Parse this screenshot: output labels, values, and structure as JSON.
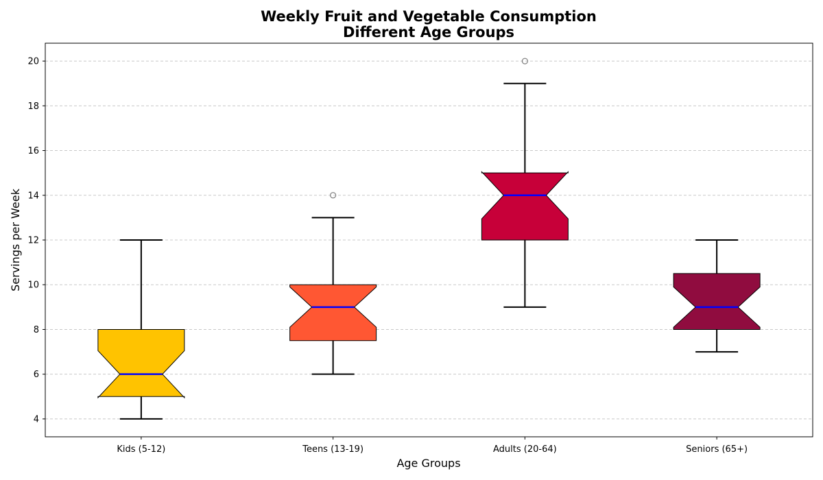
{
  "chart_data": {
    "type": "box",
    "title_lines": [
      "Weekly Fruit and Vegetable Consumption",
      "Different Age Groups"
    ],
    "xlabel": "Age Groups",
    "ylabel": "Servings per Week",
    "ylim": [
      3.2,
      20.8
    ],
    "yticks": [
      4,
      6,
      8,
      10,
      12,
      14,
      16,
      18,
      20
    ],
    "grid": "horizontal dashed",
    "notched": true,
    "median_color": "#0000ff",
    "categories": [
      "Kids (5-12)",
      "Teens (13-19)",
      "Adults (20-64)",
      "Seniors (65+)"
    ],
    "boxes": [
      {
        "label": "Kids (5-12)",
        "whisker_low": 4,
        "q1": 5,
        "median": 6,
        "q3": 8,
        "whisker_high": 12,
        "notch_low": 4.95,
        "notch_high": 7.05,
        "outliers": [],
        "color": "#ffc300"
      },
      {
        "label": "Teens (13-19)",
        "whisker_low": 6,
        "q1": 7.5,
        "median": 9,
        "q3": 10,
        "whisker_high": 13,
        "notch_low": 8.1,
        "notch_high": 9.9,
        "outliers": [
          14
        ],
        "color": "#ff5733"
      },
      {
        "label": "Adults (20-64)",
        "whisker_low": 9,
        "q1": 12,
        "median": 14,
        "q3": 15,
        "whisker_high": 19,
        "notch_low": 12.95,
        "notch_high": 15.05,
        "outliers": [
          20
        ],
        "color": "#c70039"
      },
      {
        "label": "Seniors (65+)",
        "whisker_low": 7,
        "q1": 8,
        "median": 9,
        "q3": 10.5,
        "whisker_high": 12,
        "notch_low": 8.1,
        "notch_high": 9.9,
        "outliers": [],
        "color": "#900c3f"
      }
    ]
  }
}
